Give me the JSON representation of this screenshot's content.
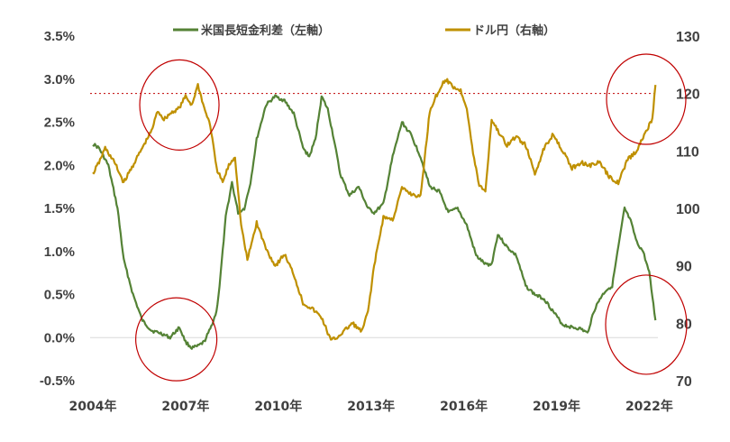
{
  "chart_data": {
    "type": "line",
    "title": "",
    "xlabel": "",
    "ylabel_left": "",
    "ylabel_right": "",
    "x_range": [
      2004.0,
      2022.25
    ],
    "x_ticks": [
      {
        "value": 2004,
        "label": "2004年"
      },
      {
        "value": 2007,
        "label": "2007年"
      },
      {
        "value": 2010,
        "label": "2010年"
      },
      {
        "value": 2013,
        "label": "2013年"
      },
      {
        "value": 2016,
        "label": "2016年"
      },
      {
        "value": 2019,
        "label": "2019年"
      },
      {
        "value": 2022,
        "label": "2022年"
      }
    ],
    "y_left": {
      "range": [
        -0.5,
        3.5
      ],
      "ticks": [
        {
          "value": 3.5,
          "label": "3.5%"
        },
        {
          "value": 3.0,
          "label": "3.0%"
        },
        {
          "value": 2.5,
          "label": "2.5%"
        },
        {
          "value": 2.0,
          "label": "2.0%"
        },
        {
          "value": 1.5,
          "label": "1.5%"
        },
        {
          "value": 1.0,
          "label": "1.0%"
        },
        {
          "value": 0.5,
          "label": "0.5%"
        },
        {
          "value": 0.0,
          "label": "0.0%"
        },
        {
          "value": -0.5,
          "label": "-0.5%"
        }
      ]
    },
    "y_right": {
      "range": [
        70,
        130
      ],
      "ticks": [
        {
          "value": 130,
          "label": "130"
        },
        {
          "value": 120,
          "label": "120"
        },
        {
          "value": 110,
          "label": "110"
        },
        {
          "value": 100,
          "label": "100"
        },
        {
          "value": 90,
          "label": "90"
        },
        {
          "value": 80,
          "label": "80"
        },
        {
          "value": 70,
          "label": "70"
        }
      ]
    },
    "grid": false,
    "zero_line": true,
    "legend_position": "top",
    "series": [
      {
        "name": "米国長短金利差（左軸）",
        "axis": "left",
        "color": "#548235",
        "x": [
          2004.0,
          2004.2,
          2004.5,
          2004.8,
          2005.0,
          2005.3,
          2005.6,
          2005.9,
          2006.2,
          2006.5,
          2006.8,
          2007.0,
          2007.2,
          2007.4,
          2007.6,
          2007.8,
          2008.0,
          2008.1,
          2008.3,
          2008.5,
          2008.7,
          2008.9,
          2009.1,
          2009.3,
          2009.6,
          2009.9,
          2010.2,
          2010.5,
          2010.8,
          2011.0,
          2011.2,
          2011.4,
          2011.6,
          2011.8,
          2012.0,
          2012.3,
          2012.6,
          2012.9,
          2013.1,
          2013.4,
          2013.7,
          2014.0,
          2014.3,
          2014.6,
          2014.9,
          2015.2,
          2015.5,
          2015.8,
          2016.1,
          2016.4,
          2016.7,
          2016.9,
          2017.1,
          2017.4,
          2017.7,
          2018.0,
          2018.3,
          2018.6,
          2018.9,
          2019.2,
          2019.5,
          2019.8,
          2020.0,
          2020.2,
          2020.4,
          2020.6,
          2020.8,
          2021.0,
          2021.2,
          2021.4,
          2021.6,
          2021.8,
          2022.0,
          2022.2
        ],
        "values": [
          2.25,
          2.2,
          2.0,
          1.5,
          0.9,
          0.5,
          0.2,
          0.08,
          0.05,
          0.0,
          0.12,
          -0.05,
          -0.12,
          -0.1,
          -0.05,
          0.1,
          0.3,
          0.6,
          1.4,
          1.8,
          1.45,
          1.5,
          1.8,
          2.3,
          2.7,
          2.8,
          2.75,
          2.6,
          2.2,
          2.1,
          2.3,
          2.8,
          2.65,
          2.3,
          1.9,
          1.65,
          1.75,
          1.5,
          1.45,
          1.55,
          2.1,
          2.5,
          2.35,
          2.1,
          1.75,
          1.7,
          1.45,
          1.5,
          1.3,
          0.95,
          0.85,
          0.85,
          1.2,
          1.05,
          0.95,
          0.6,
          0.5,
          0.45,
          0.3,
          0.15,
          0.12,
          0.1,
          0.05,
          0.3,
          0.45,
          0.55,
          0.6,
          1.05,
          1.5,
          1.35,
          1.1,
          1.0,
          0.75,
          0.2
        ]
      },
      {
        "name": "ドル円（右軸）",
        "axis": "right",
        "color": "#BF9000",
        "x": [
          2004.0,
          2004.2,
          2004.4,
          2004.7,
          2005.0,
          2005.3,
          2005.6,
          2005.9,
          2006.1,
          2006.3,
          2006.5,
          2006.8,
          2007.0,
          2007.2,
          2007.4,
          2007.6,
          2007.8,
          2008.0,
          2008.2,
          2008.4,
          2008.6,
          2008.8,
          2009.0,
          2009.3,
          2009.6,
          2009.9,
          2010.2,
          2010.5,
          2010.8,
          2011.1,
          2011.4,
          2011.7,
          2011.9,
          2012.1,
          2012.4,
          2012.7,
          2012.9,
          2013.1,
          2013.4,
          2013.7,
          2014.0,
          2014.3,
          2014.6,
          2014.9,
          2015.1,
          2015.4,
          2015.7,
          2015.9,
          2016.1,
          2016.3,
          2016.5,
          2016.7,
          2016.9,
          2017.1,
          2017.4,
          2017.7,
          2018.0,
          2018.3,
          2018.6,
          2018.9,
          2019.2,
          2019.5,
          2019.8,
          2020.1,
          2020.4,
          2020.7,
          2021.0,
          2021.3,
          2021.6,
          2021.9,
          2022.1,
          2022.2
        ],
        "values": [
          106.0,
          108.0,
          110.5,
          108.0,
          104.5,
          107.5,
          110.5,
          113.5,
          117.0,
          115.5,
          116.5,
          117.5,
          119.5,
          118.0,
          121.5,
          117.5,
          114.5,
          107.0,
          104.5,
          107.5,
          109.0,
          97.0,
          91.0,
          97.5,
          93.0,
          90.0,
          92.0,
          88.5,
          83.5,
          82.5,
          81.0,
          77.0,
          77.5,
          78.5,
          80.0,
          78.5,
          82.0,
          90.0,
          98.5,
          98.0,
          103.5,
          102.5,
          102.0,
          117.0,
          119.5,
          122.5,
          121.0,
          120.5,
          117.5,
          109.5,
          104.0,
          103.0,
          115.5,
          113.5,
          111.0,
          112.5,
          111.0,
          106.0,
          110.5,
          113.0,
          110.0,
          107.0,
          108.0,
          107.5,
          108.0,
          105.5,
          104.5,
          108.5,
          110.0,
          113.5,
          115.5,
          121.5
        ]
      }
    ],
    "reference_lines": [
      {
        "axis": "right",
        "value": 120,
        "style": "dotted",
        "color": "#C00000"
      }
    ],
    "annotations": [
      {
        "type": "ellipse",
        "color": "#C00000",
        "cx": 2006.8,
        "cy_axis": "right",
        "cy": 118.0
      },
      {
        "type": "ellipse",
        "color": "#C00000",
        "cx": 2006.7,
        "cy_axis": "left",
        "cy": -0.02
      },
      {
        "type": "ellipse",
        "color": "#C00000",
        "cx": 2022.3,
        "cy_axis": "right",
        "cy": 119.0
      },
      {
        "type": "ellipse",
        "color": "#C00000",
        "cx": 2022.3,
        "cy_axis": "left",
        "cy": 0.15
      }
    ]
  }
}
